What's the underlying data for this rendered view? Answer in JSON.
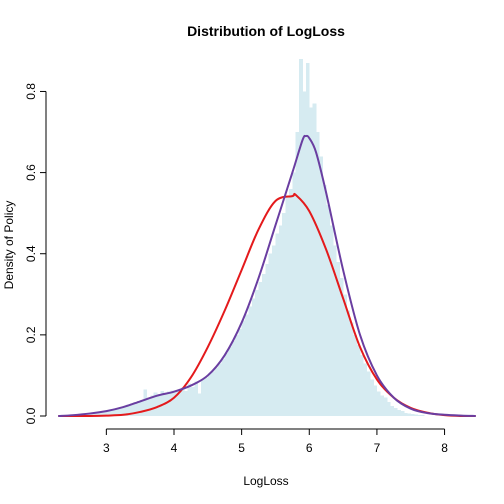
{
  "chart_data": {
    "type": "histogram",
    "title": "Distribution of LogLoss",
    "xlabel": "LogLoss",
    "ylabel": "Density of Policy",
    "xlim": [
      2.3,
      8.45
    ],
    "ylim": [
      0,
      0.88
    ],
    "x_ticks": [
      3,
      4,
      5,
      6,
      7,
      8
    ],
    "y_ticks": [
      0.0,
      0.2,
      0.4,
      0.6,
      0.8
    ],
    "x_tick_labels": [
      "3",
      "4",
      "5",
      "6",
      "7",
      "8"
    ],
    "y_tick_labels": [
      "0.0",
      "0.2",
      "0.4",
      "0.6",
      "0.8"
    ],
    "grid": false,
    "legend": false,
    "histogram": {
      "color": "#d6ebf1",
      "bin_width": 0.05,
      "bins": [
        {
          "x0": 2.3,
          "density": 0.002
        },
        {
          "x0": 2.35,
          "density": 0.002
        },
        {
          "x0": 2.4,
          "density": 0.003
        },
        {
          "x0": 2.45,
          "density": 0.003
        },
        {
          "x0": 2.5,
          "density": 0.004
        },
        {
          "x0": 2.55,
          "density": 0.005
        },
        {
          "x0": 2.6,
          "density": 0.005
        },
        {
          "x0": 2.65,
          "density": 0.006
        },
        {
          "x0": 2.7,
          "density": 0.007
        },
        {
          "x0": 2.75,
          "density": 0.008
        },
        {
          "x0": 2.8,
          "density": 0.009
        },
        {
          "x0": 2.85,
          "density": 0.01
        },
        {
          "x0": 2.9,
          "density": 0.011
        },
        {
          "x0": 2.95,
          "density": 0.012
        },
        {
          "x0": 3.0,
          "density": 0.014
        },
        {
          "x0": 3.05,
          "density": 0.016
        },
        {
          "x0": 3.1,
          "density": 0.018
        },
        {
          "x0": 3.15,
          "density": 0.02
        },
        {
          "x0": 3.2,
          "density": 0.022
        },
        {
          "x0": 3.25,
          "density": 0.025
        },
        {
          "x0": 3.3,
          "density": 0.028
        },
        {
          "x0": 3.35,
          "density": 0.031
        },
        {
          "x0": 3.4,
          "density": 0.034
        },
        {
          "x0": 3.45,
          "density": 0.037
        },
        {
          "x0": 3.5,
          "density": 0.04
        },
        {
          "x0": 3.55,
          "density": 0.065
        },
        {
          "x0": 3.6,
          "density": 0.045
        },
        {
          "x0": 3.65,
          "density": 0.05
        },
        {
          "x0": 3.7,
          "density": 0.058
        },
        {
          "x0": 3.75,
          "density": 0.052
        },
        {
          "x0": 3.8,
          "density": 0.062
        },
        {
          "x0": 3.85,
          "density": 0.055
        },
        {
          "x0": 3.9,
          "density": 0.06
        },
        {
          "x0": 3.95,
          "density": 0.063
        },
        {
          "x0": 4.0,
          "density": 0.06
        },
        {
          "x0": 4.05,
          "density": 0.065
        },
        {
          "x0": 4.1,
          "density": 0.07
        },
        {
          "x0": 4.15,
          "density": 0.062
        },
        {
          "x0": 4.2,
          "density": 0.08
        },
        {
          "x0": 4.25,
          "density": 0.072
        },
        {
          "x0": 4.3,
          "density": 0.085
        },
        {
          "x0": 4.35,
          "density": 0.055
        },
        {
          "x0": 4.4,
          "density": 0.09
        },
        {
          "x0": 4.45,
          "density": 0.095
        },
        {
          "x0": 4.5,
          "density": 0.105
        },
        {
          "x0": 4.55,
          "density": 0.11
        },
        {
          "x0": 4.6,
          "density": 0.12
        },
        {
          "x0": 4.65,
          "density": 0.13
        },
        {
          "x0": 4.7,
          "density": 0.14
        },
        {
          "x0": 4.75,
          "density": 0.155
        },
        {
          "x0": 4.8,
          "density": 0.17
        },
        {
          "x0": 4.85,
          "density": 0.185
        },
        {
          "x0": 4.9,
          "density": 0.2
        },
        {
          "x0": 4.95,
          "density": 0.215
        },
        {
          "x0": 5.0,
          "density": 0.235
        },
        {
          "x0": 5.05,
          "density": 0.25
        },
        {
          "x0": 5.1,
          "density": 0.27
        },
        {
          "x0": 5.15,
          "density": 0.29
        },
        {
          "x0": 5.2,
          "density": 0.31
        },
        {
          "x0": 5.25,
          "density": 0.33
        },
        {
          "x0": 5.3,
          "density": 0.35
        },
        {
          "x0": 5.35,
          "density": 0.375
        },
        {
          "x0": 5.4,
          "density": 0.4
        },
        {
          "x0": 5.45,
          "density": 0.42
        },
        {
          "x0": 5.5,
          "density": 0.45
        },
        {
          "x0": 5.55,
          "density": 0.47
        },
        {
          "x0": 5.6,
          "density": 0.5
        },
        {
          "x0": 5.65,
          "density": 0.54
        },
        {
          "x0": 5.7,
          "density": 0.56
        },
        {
          "x0": 5.75,
          "density": 0.6
        },
        {
          "x0": 5.8,
          "density": 0.7
        },
        {
          "x0": 5.85,
          "density": 0.88
        },
        {
          "x0": 5.9,
          "density": 0.8
        },
        {
          "x0": 5.95,
          "density": 0.87
        },
        {
          "x0": 6.0,
          "density": 0.76
        },
        {
          "x0": 6.05,
          "density": 0.77
        },
        {
          "x0": 6.1,
          "density": 0.7
        },
        {
          "x0": 6.15,
          "density": 0.64
        },
        {
          "x0": 6.2,
          "density": 0.57
        },
        {
          "x0": 6.25,
          "density": 0.52
        },
        {
          "x0": 6.3,
          "density": 0.47
        },
        {
          "x0": 6.35,
          "density": 0.42
        },
        {
          "x0": 6.4,
          "density": 0.38
        },
        {
          "x0": 6.45,
          "density": 0.34
        },
        {
          "x0": 6.5,
          "density": 0.3
        },
        {
          "x0": 6.55,
          "density": 0.26
        },
        {
          "x0": 6.6,
          "density": 0.23
        },
        {
          "x0": 6.65,
          "density": 0.2
        },
        {
          "x0": 6.7,
          "density": 0.175
        },
        {
          "x0": 6.75,
          "density": 0.15
        },
        {
          "x0": 6.8,
          "density": 0.13
        },
        {
          "x0": 6.85,
          "density": 0.11
        },
        {
          "x0": 6.9,
          "density": 0.09
        },
        {
          "x0": 6.95,
          "density": 0.075
        },
        {
          "x0": 7.0,
          "density": 0.06
        },
        {
          "x0": 7.05,
          "density": 0.05
        },
        {
          "x0": 7.1,
          "density": 0.045
        },
        {
          "x0": 7.15,
          "density": 0.035
        },
        {
          "x0": 7.2,
          "density": 0.025
        },
        {
          "x0": 7.25,
          "density": 0.02
        },
        {
          "x0": 7.3,
          "density": 0.015
        },
        {
          "x0": 7.35,
          "density": 0.012
        },
        {
          "x0": 7.4,
          "density": 0.008
        },
        {
          "x0": 7.45,
          "density": 0.006
        },
        {
          "x0": 7.5,
          "density": 0.005
        },
        {
          "x0": 7.55,
          "density": 0.004
        },
        {
          "x0": 7.6,
          "density": 0.003
        },
        {
          "x0": 7.65,
          "density": 0.002
        }
      ]
    },
    "series": [
      {
        "color": "#e41a1c",
        "type": "line",
        "x": [
          2.3,
          2.5,
          2.75,
          3.0,
          3.25,
          3.5,
          3.75,
          4.0,
          4.25,
          4.5,
          4.75,
          5.0,
          5.25,
          5.5,
          5.75,
          5.8,
          6.0,
          6.25,
          6.5,
          6.75,
          7.0,
          7.25,
          7.5,
          7.75,
          8.0,
          8.25,
          8.45
        ],
        "y": [
          0.0,
          0.0,
          0.0,
          0.001,
          0.003,
          0.01,
          0.022,
          0.045,
          0.095,
          0.17,
          0.26,
          0.36,
          0.46,
          0.53,
          0.542,
          0.545,
          0.505,
          0.41,
          0.29,
          0.17,
          0.09,
          0.045,
          0.02,
          0.008,
          0.002,
          0.0,
          0.0
        ]
      },
      {
        "color": "#6a3ea1",
        "type": "line",
        "x": [
          2.3,
          2.5,
          2.75,
          3.0,
          3.25,
          3.5,
          3.75,
          4.0,
          4.25,
          4.5,
          4.75,
          5.0,
          5.25,
          5.5,
          5.75,
          5.9,
          5.95,
          6.0,
          6.1,
          6.25,
          6.5,
          6.75,
          7.0,
          7.25,
          7.5,
          7.75,
          8.0,
          8.25,
          8.45
        ],
        "y": [
          0.0,
          0.002,
          0.006,
          0.012,
          0.022,
          0.036,
          0.05,
          0.06,
          0.075,
          0.1,
          0.15,
          0.23,
          0.34,
          0.47,
          0.6,
          0.68,
          0.69,
          0.685,
          0.65,
          0.55,
          0.36,
          0.2,
          0.1,
          0.045,
          0.018,
          0.007,
          0.003,
          0.001,
          0.0
        ]
      }
    ]
  }
}
